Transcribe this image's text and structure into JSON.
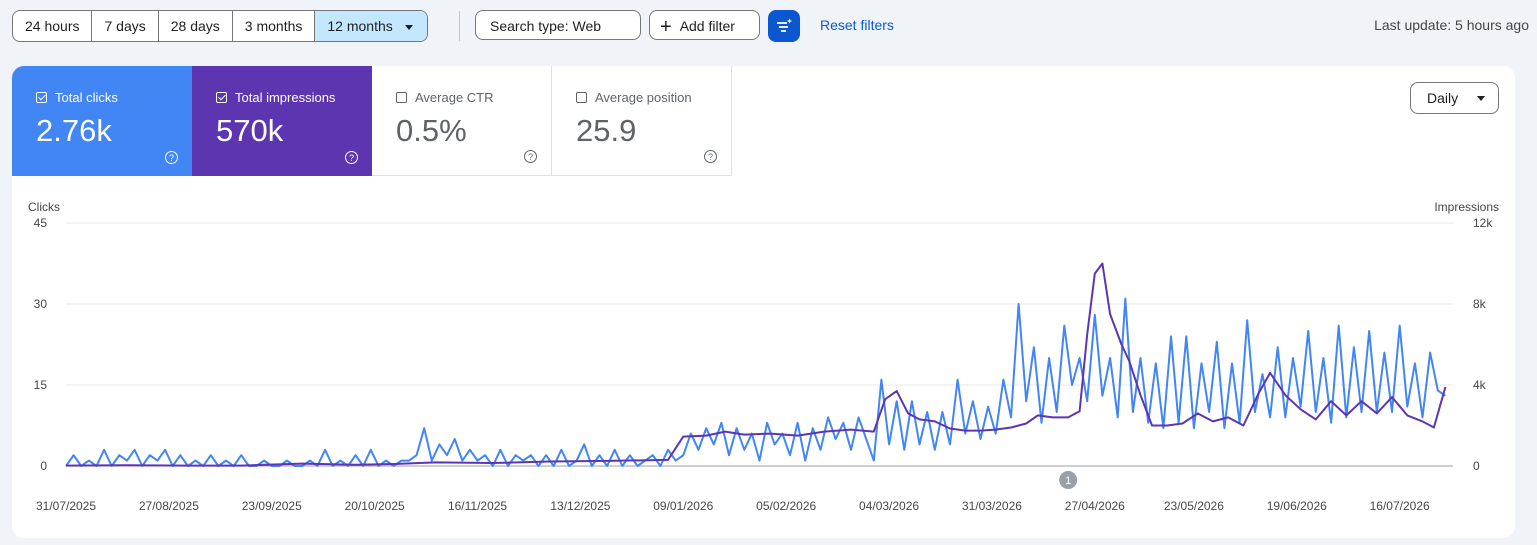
{
  "toolbar": {
    "ranges": [
      "24 hours",
      "7 days",
      "28 days",
      "3 months",
      "12 months"
    ],
    "active_range": "12 months",
    "search_type": "Search type: Web",
    "add_filter": "Add filter",
    "reset": "Reset filters",
    "last_update": "Last update: 5 hours ago"
  },
  "metrics": {
    "clicks": {
      "label": "Total clicks",
      "value": "2.76k",
      "checked": true,
      "color": "#4285f4"
    },
    "impressions": {
      "label": "Total impressions",
      "value": "570k",
      "checked": true,
      "color": "#5e35b1"
    },
    "ctr": {
      "label": "Average CTR",
      "value": "0.5%",
      "checked": false
    },
    "position": {
      "label": "Average position",
      "value": "25.9",
      "checked": false
    }
  },
  "granularity": "Daily",
  "chart_data": {
    "type": "line",
    "ylabel_left": "Clicks",
    "ylabel_right": "Impressions",
    "ylim_left": [
      0,
      45
    ],
    "ylim_right": [
      0,
      12000
    ],
    "yticks_left": [
      "0",
      "15",
      "30",
      "45"
    ],
    "yticks_right": [
      "0",
      "4k",
      "8k",
      "12k"
    ],
    "x_start": "31/07/2025",
    "x_end": "30/07/2026",
    "x_ticks": [
      "31/07/2025",
      "27/08/2025",
      "23/09/2025",
      "20/10/2025",
      "16/11/2025",
      "13/12/2025",
      "09/01/2026",
      "05/02/2026",
      "04/03/2026",
      "31/03/2026",
      "27/04/2026",
      "23/05/2026",
      "19/06/2026",
      "16/07/2026"
    ],
    "annotation": {
      "label": "1",
      "date": "20/04/2026"
    },
    "grid": true,
    "series": [
      {
        "name": "Clicks",
        "color": "#4285f4",
        "axis": "left",
        "points": [
          [
            "31/07/2025",
            0
          ],
          [
            "02/08/2025",
            2
          ],
          [
            "04/08/2025",
            0
          ],
          [
            "06/08/2025",
            1
          ],
          [
            "08/08/2025",
            0
          ],
          [
            "10/08/2025",
            3
          ],
          [
            "12/08/2025",
            0
          ],
          [
            "14/08/2025",
            2
          ],
          [
            "16/08/2025",
            1
          ],
          [
            "18/08/2025",
            3
          ],
          [
            "20/08/2025",
            0
          ],
          [
            "22/08/2025",
            2
          ],
          [
            "24/08/2025",
            1
          ],
          [
            "26/08/2025",
            3
          ],
          [
            "28/08/2025",
            0
          ],
          [
            "30/08/2025",
            2
          ],
          [
            "01/09/2025",
            0
          ],
          [
            "03/09/2025",
            1
          ],
          [
            "05/09/2025",
            0
          ],
          [
            "07/09/2025",
            2
          ],
          [
            "09/09/2025",
            0
          ],
          [
            "11/09/2025",
            1
          ],
          [
            "13/09/2025",
            0
          ],
          [
            "15/09/2025",
            2
          ],
          [
            "17/09/2025",
            0
          ],
          [
            "19/09/2025",
            0
          ],
          [
            "21/09/2025",
            1
          ],
          [
            "23/09/2025",
            0
          ],
          [
            "25/09/2025",
            0
          ],
          [
            "27/09/2025",
            1
          ],
          [
            "29/09/2025",
            0
          ],
          [
            "01/10/2025",
            0
          ],
          [
            "03/10/2025",
            1
          ],
          [
            "05/10/2025",
            0
          ],
          [
            "07/10/2025",
            3
          ],
          [
            "09/10/2025",
            0
          ],
          [
            "11/10/2025",
            1
          ],
          [
            "13/10/2025",
            0
          ],
          [
            "15/10/2025",
            2
          ],
          [
            "17/10/2025",
            0
          ],
          [
            "19/10/2025",
            3
          ],
          [
            "21/10/2025",
            0
          ],
          [
            "23/10/2025",
            1
          ],
          [
            "25/10/2025",
            0
          ],
          [
            "27/10/2025",
            1
          ],
          [
            "29/10/2025",
            1
          ],
          [
            "31/10/2025",
            2
          ],
          [
            "02/11/2025",
            7
          ],
          [
            "04/11/2025",
            1
          ],
          [
            "06/11/2025",
            4
          ],
          [
            "08/11/2025",
            2
          ],
          [
            "10/11/2025",
            5
          ],
          [
            "12/11/2025",
            1
          ],
          [
            "14/11/2025",
            3
          ],
          [
            "16/11/2025",
            1
          ],
          [
            "18/11/2025",
            2
          ],
          [
            "20/11/2025",
            0
          ],
          [
            "22/11/2025",
            3
          ],
          [
            "24/11/2025",
            0
          ],
          [
            "26/11/2025",
            2
          ],
          [
            "28/11/2025",
            1
          ],
          [
            "30/11/2025",
            2
          ],
          [
            "02/12/2025",
            0
          ],
          [
            "04/12/2025",
            2
          ],
          [
            "06/12/2025",
            0
          ],
          [
            "08/12/2025",
            3
          ],
          [
            "10/12/2025",
            0
          ],
          [
            "12/12/2025",
            1
          ],
          [
            "14/12/2025",
            4
          ],
          [
            "16/12/2025",
            0
          ],
          [
            "18/12/2025",
            2
          ],
          [
            "20/12/2025",
            0
          ],
          [
            "22/12/2025",
            3
          ],
          [
            "24/12/2025",
            0
          ],
          [
            "26/12/2025",
            2
          ],
          [
            "28/12/2025",
            0
          ],
          [
            "30/12/2025",
            1
          ],
          [
            "01/01/2026",
            2
          ],
          [
            "03/01/2026",
            0
          ],
          [
            "05/01/2026",
            3
          ],
          [
            "07/01/2026",
            1
          ],
          [
            "09/01/2026",
            2
          ],
          [
            "11/01/2026",
            6
          ],
          [
            "13/01/2026",
            3
          ],
          [
            "15/01/2026",
            7
          ],
          [
            "17/01/2026",
            4
          ],
          [
            "19/01/2026",
            8
          ],
          [
            "21/01/2026",
            2
          ],
          [
            "23/01/2026",
            7
          ],
          [
            "25/01/2026",
            3
          ],
          [
            "27/01/2026",
            6
          ],
          [
            "29/01/2026",
            1
          ],
          [
            "31/01/2026",
            8
          ],
          [
            "02/02/2026",
            4
          ],
          [
            "04/02/2026",
            6
          ],
          [
            "06/02/2026",
            2
          ],
          [
            "08/02/2026",
            8
          ],
          [
            "10/02/2026",
            1
          ],
          [
            "12/02/2026",
            7
          ],
          [
            "14/02/2026",
            3
          ],
          [
            "16/02/2026",
            9
          ],
          [
            "18/02/2026",
            5
          ],
          [
            "20/02/2026",
            8
          ],
          [
            "22/02/2026",
            3
          ],
          [
            "24/02/2026",
            9
          ],
          [
            "26/02/2026",
            5
          ],
          [
            "28/02/2026",
            1
          ],
          [
            "02/03/2026",
            16
          ],
          [
            "04/03/2026",
            4
          ],
          [
            "06/03/2026",
            12
          ],
          [
            "08/03/2026",
            3
          ],
          [
            "10/03/2026",
            12
          ],
          [
            "12/03/2026",
            4
          ],
          [
            "14/03/2026",
            10
          ],
          [
            "16/03/2026",
            3
          ],
          [
            "18/03/2026",
            10
          ],
          [
            "20/03/2026",
            4
          ],
          [
            "22/03/2026",
            16
          ],
          [
            "24/03/2026",
            6
          ],
          [
            "26/03/2026",
            12
          ],
          [
            "28/03/2026",
            5
          ],
          [
            "30/03/2026",
            11
          ],
          [
            "01/04/2026",
            6
          ],
          [
            "03/04/2026",
            16
          ],
          [
            "05/04/2026",
            9
          ],
          [
            "07/04/2026",
            30
          ],
          [
            "09/04/2026",
            12
          ],
          [
            "11/04/2026",
            22
          ],
          [
            "13/04/2026",
            8
          ],
          [
            "15/04/2026",
            20
          ],
          [
            "17/04/2026",
            10
          ],
          [
            "19/04/2026",
            26
          ],
          [
            "21/04/2026",
            15
          ],
          [
            "23/04/2026",
            20
          ],
          [
            "25/04/2026",
            12
          ],
          [
            "27/04/2026",
            28
          ],
          [
            "29/04/2026",
            13
          ],
          [
            "01/05/2026",
            20
          ],
          [
            "03/05/2026",
            9
          ],
          [
            "05/05/2026",
            31
          ],
          [
            "07/05/2026",
            10
          ],
          [
            "09/05/2026",
            20
          ],
          [
            "11/05/2026",
            8
          ],
          [
            "13/05/2026",
            19
          ],
          [
            "15/05/2026",
            7
          ],
          [
            "17/05/2026",
            24
          ],
          [
            "19/05/2026",
            8
          ],
          [
            "21/05/2026",
            24
          ],
          [
            "23/05/2026",
            7
          ],
          [
            "25/05/2026",
            19
          ],
          [
            "27/05/2026",
            10
          ],
          [
            "29/05/2026",
            23
          ],
          [
            "31/05/2026",
            7
          ],
          [
            "02/06/2026",
            19
          ],
          [
            "04/06/2026",
            8
          ],
          [
            "06/06/2026",
            27
          ],
          [
            "08/06/2026",
            10
          ],
          [
            "10/06/2026",
            17
          ],
          [
            "12/06/2026",
            9
          ],
          [
            "14/06/2026",
            22
          ],
          [
            "16/06/2026",
            9
          ],
          [
            "18/06/2026",
            20
          ],
          [
            "20/06/2026",
            11
          ],
          [
            "22/06/2026",
            25
          ],
          [
            "24/06/2026",
            10
          ],
          [
            "26/06/2026",
            20
          ],
          [
            "28/06/2026",
            8
          ],
          [
            "30/06/2026",
            26
          ],
          [
            "02/07/2026",
            9
          ],
          [
            "04/07/2026",
            22
          ],
          [
            "06/07/2026",
            10
          ],
          [
            "08/07/2026",
            25
          ],
          [
            "10/07/2026",
            10
          ],
          [
            "12/07/2026",
            21
          ],
          [
            "14/07/2026",
            10
          ],
          [
            "16/07/2026",
            26
          ],
          [
            "18/07/2026",
            11
          ],
          [
            "20/07/2026",
            19
          ],
          [
            "22/07/2026",
            9
          ],
          [
            "24/07/2026",
            21
          ],
          [
            "26/07/2026",
            14
          ],
          [
            "28/07/2026",
            13
          ]
        ]
      },
      {
        "name": "Impressions",
        "color": "#5e35b1",
        "axis": "right",
        "points": [
          [
            "31/07/2025",
            20
          ],
          [
            "15/08/2025",
            40
          ],
          [
            "01/09/2025",
            20
          ],
          [
            "15/09/2025",
            20
          ],
          [
            "01/10/2025",
            120
          ],
          [
            "15/10/2025",
            60
          ],
          [
            "25/10/2025",
            100
          ],
          [
            "05/11/2025",
            180
          ],
          [
            "20/11/2025",
            150
          ],
          [
            "05/12/2025",
            220
          ],
          [
            "20/12/2025",
            250
          ],
          [
            "05/01/2026",
            300
          ],
          [
            "09/01/2026",
            1450
          ],
          [
            "15/01/2026",
            1500
          ],
          [
            "20/01/2026",
            1700
          ],
          [
            "25/01/2026",
            1550
          ],
          [
            "01/02/2026",
            1600
          ],
          [
            "08/02/2026",
            1500
          ],
          [
            "15/02/2026",
            1700
          ],
          [
            "22/02/2026",
            1800
          ],
          [
            "28/02/2026",
            1700
          ],
          [
            "03/03/2026",
            3300
          ],
          [
            "06/03/2026",
            3700
          ],
          [
            "09/03/2026",
            2600
          ],
          [
            "12/03/2026",
            2300
          ],
          [
            "16/03/2026",
            2200
          ],
          [
            "20/03/2026",
            1850
          ],
          [
            "24/03/2026",
            1750
          ],
          [
            "28/03/2026",
            1750
          ],
          [
            "01/04/2026",
            1800
          ],
          [
            "05/04/2026",
            1900
          ],
          [
            "09/04/2026",
            2100
          ],
          [
            "12/04/2026",
            2500
          ],
          [
            "16/04/2026",
            2400
          ],
          [
            "20/04/2026",
            2400
          ],
          [
            "23/04/2026",
            2700
          ],
          [
            "25/04/2026",
            6500
          ],
          [
            "27/04/2026",
            9500
          ],
          [
            "29/04/2026",
            10000
          ],
          [
            "01/05/2026",
            7500
          ],
          [
            "04/05/2026",
            6000
          ],
          [
            "06/05/2026",
            5200
          ],
          [
            "09/05/2026",
            3500
          ],
          [
            "12/05/2026",
            2000
          ],
          [
            "16/05/2026",
            2000
          ],
          [
            "20/05/2026",
            2100
          ],
          [
            "24/05/2026",
            2600
          ],
          [
            "28/05/2026",
            2200
          ],
          [
            "01/06/2026",
            2400
          ],
          [
            "05/06/2026",
            2000
          ],
          [
            "09/06/2026",
            3600
          ],
          [
            "12/06/2026",
            4600
          ],
          [
            "16/06/2026",
            3500
          ],
          [
            "20/06/2026",
            2800
          ],
          [
            "24/06/2026",
            2300
          ],
          [
            "28/06/2026",
            3200
          ],
          [
            "02/07/2026",
            2500
          ],
          [
            "06/07/2026",
            3200
          ],
          [
            "10/07/2026",
            2600
          ],
          [
            "14/07/2026",
            3400
          ],
          [
            "18/07/2026",
            2500
          ],
          [
            "22/07/2026",
            2200
          ],
          [
            "25/07/2026",
            1900
          ],
          [
            "28/07/2026",
            3900
          ]
        ]
      }
    ]
  }
}
